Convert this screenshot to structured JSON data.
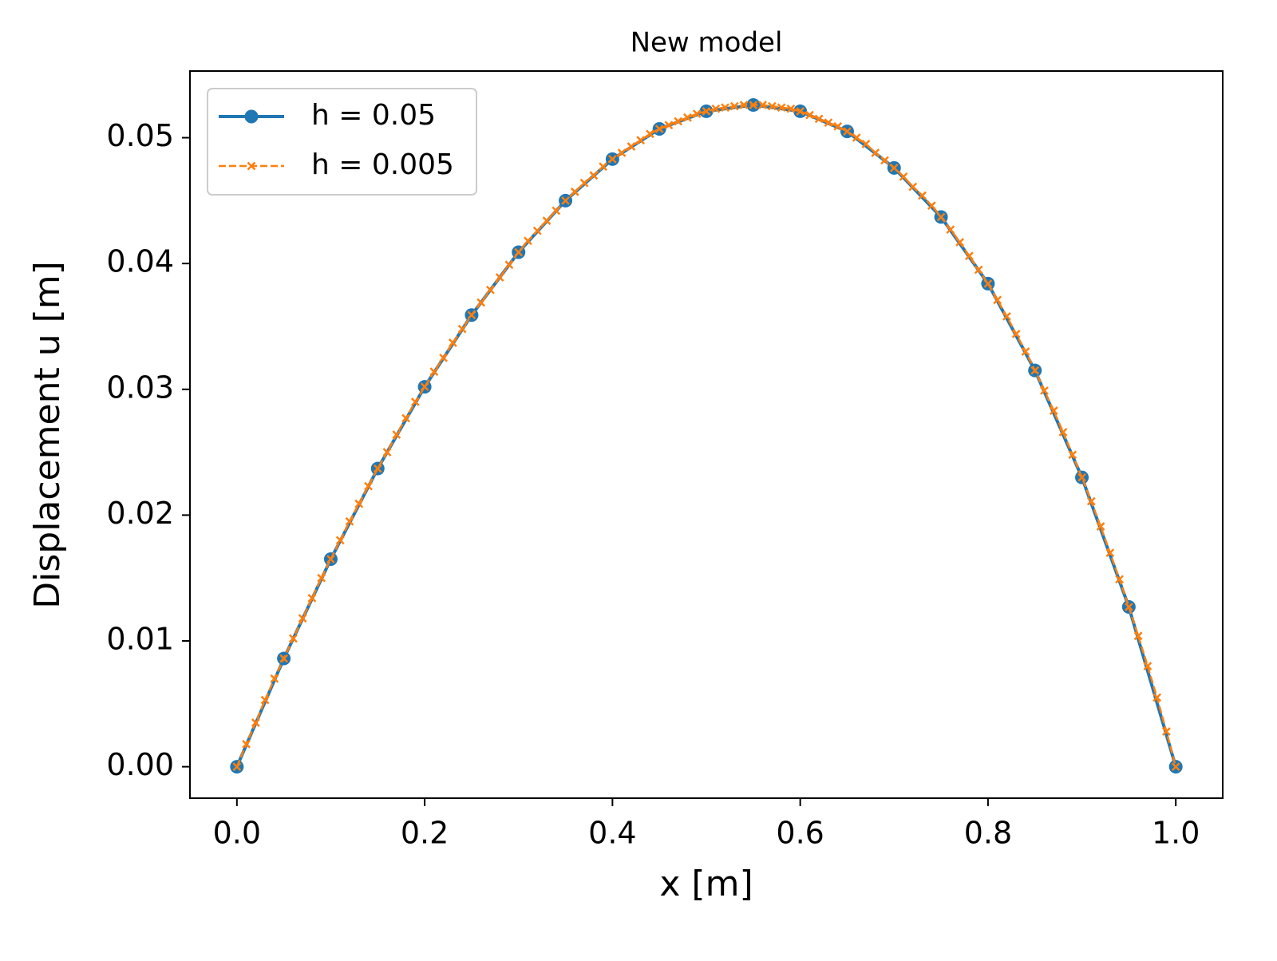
{
  "chart_data": {
    "type": "line",
    "title": "New model",
    "x_label": "x [m]",
    "y_label": "Displacement u [m]",
    "xlim": [
      -0.05,
      1.05
    ],
    "ylim": [
      -0.0025,
      0.0553
    ],
    "xticks": [
      {
        "value": 0,
        "label": "0.0"
      },
      0.2,
      0.4,
      0.6,
      0.8,
      {
        "value": 1,
        "label": "1.0"
      }
    ],
    "yticks": [
      {
        "value": 0,
        "label": "0.00"
      },
      0.01,
      0.02,
      0.03,
      0.04,
      0.05
    ],
    "grid": false,
    "legend": "upper left",
    "series": [
      {
        "name": "h = 0.05",
        "color": "#1f77b4",
        "linestyle": "solid",
        "marker": "circle",
        "x": [
          0,
          0.05,
          0.1,
          0.15,
          0.2,
          0.25,
          0.3,
          0.35,
          0.4,
          0.45,
          0.5,
          0.55,
          0.6,
          0.65,
          0.7,
          0.75,
          0.8,
          0.85,
          0.9,
          0.95,
          1
        ],
        "values": [
          0,
          0.0086,
          0.0165,
          0.0237,
          0.0302,
          0.0359,
          0.0409,
          0.045,
          0.0483,
          0.0507,
          0.0521,
          0.0526,
          0.0521,
          0.0505,
          0.0476,
          0.0437,
          0.0384,
          0.0315,
          0.023,
          0.0127,
          0
        ]
      },
      {
        "name": "h = 0.005",
        "color": "#ff7f0e",
        "linestyle": "dashed",
        "marker": "x",
        "x": [
          0,
          0.01,
          0.02,
          0.03,
          0.04,
          0.05,
          0.06,
          0.07,
          0.08,
          0.09,
          0.1,
          0.11,
          0.12,
          0.13,
          0.14,
          0.15,
          0.16,
          0.17,
          0.18,
          0.19,
          0.2,
          0.21,
          0.22,
          0.23,
          0.24,
          0.25,
          0.26,
          0.27,
          0.28,
          0.29,
          0.3,
          0.31,
          0.32,
          0.33,
          0.34,
          0.35,
          0.36,
          0.37,
          0.38,
          0.39,
          0.4,
          0.41,
          0.42,
          0.43,
          0.44,
          0.45,
          0.46,
          0.47,
          0.48,
          0.49,
          0.5,
          0.51,
          0.52,
          0.53,
          0.54,
          0.55,
          0.56,
          0.57,
          0.58,
          0.59,
          0.6,
          0.61,
          0.62,
          0.63,
          0.64,
          0.65,
          0.66,
          0.67,
          0.68,
          0.69,
          0.7,
          0.71,
          0.72,
          0.73,
          0.74,
          0.75,
          0.76,
          0.77,
          0.78,
          0.79,
          0.8,
          0.81,
          0.82,
          0.83,
          0.84,
          0.85,
          0.86,
          0.87,
          0.88,
          0.89,
          0.9,
          0.91,
          0.92,
          0.93,
          0.94,
          0.95,
          0.96,
          0.97,
          0.98,
          0.99,
          1
        ],
        "values": [
          0,
          0.0018,
          0.0035,
          0.0053,
          0.007,
          0.0086,
          0.0102,
          0.0118,
          0.0134,
          0.015,
          0.0165,
          0.018,
          0.0195,
          0.0209,
          0.0223,
          0.0237,
          0.025,
          0.0264,
          0.0277,
          0.029,
          0.0302,
          0.0314,
          0.0325,
          0.0337,
          0.0348,
          0.0359,
          0.0369,
          0.0379,
          0.0389,
          0.0399,
          0.0409,
          0.0418,
          0.0426,
          0.0434,
          0.0442,
          0.045,
          0.0457,
          0.0464,
          0.047,
          0.0477,
          0.0483,
          0.0488,
          0.0493,
          0.0498,
          0.0503,
          0.0507,
          0.051,
          0.0513,
          0.0516,
          0.0519,
          0.0521,
          0.0523,
          0.0524,
          0.0525,
          0.0526,
          0.0526,
          0.0526,
          0.0525,
          0.0524,
          0.0523,
          0.0521,
          0.0518,
          0.0515,
          0.0512,
          0.0509,
          0.0505,
          0.05,
          0.0495,
          0.0488,
          0.0482,
          0.0476,
          0.0469,
          0.0461,
          0.0454,
          0.0446,
          0.0437,
          0.0427,
          0.0417,
          0.0406,
          0.0395,
          0.0384,
          0.0371,
          0.0358,
          0.0344,
          0.033,
          0.0315,
          0.0299,
          0.0283,
          0.0266,
          0.0248,
          0.023,
          0.0211,
          0.0191,
          0.017,
          0.0149,
          0.0127,
          0.0104,
          0.008,
          0.0055,
          0.0028,
          0
        ]
      }
    ]
  }
}
